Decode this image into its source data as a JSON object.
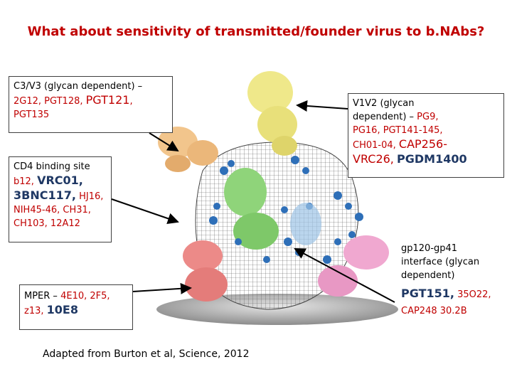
{
  "title": "What about sensitivity of transmitted/founder virus to b.NAbs?",
  "boxes": {
    "c3v3": {
      "line1": "C3/V3 (glycan dependent) –",
      "ab1": "2G12, PGT128,",
      "ab2": "PGT121",
      "comma": ",",
      "ab3": "PGT135"
    },
    "cd4": {
      "line1": "CD4 binding site",
      "ab1": "b12,",
      "ab2": "VRC01,",
      "ab3": "3BNC117,",
      "ab4": "HJ16,",
      "ab5": "NIH45-46, CH31,",
      "ab6": "CH103, 12A12"
    },
    "mper": {
      "line1": "MPER –",
      "ab1": "4E10, 2F5,",
      "ab2": "z13,",
      "ab3": "10E8"
    },
    "v1v2": {
      "line1": "V1V2 (glycan",
      "line2": "dependent) –",
      "ab1": "PG9,",
      "ab2": "PG16, PGT141-145,",
      "ab3": "CH01-04,",
      "ab4": "CAP256-",
      "ab5": "VRC26,",
      "ab6": "PGDM1400"
    },
    "interface": {
      "line1": "gp120-gp41",
      "line2": "interface (glycan",
      "line3": "dependent)",
      "ab1": "PGT151,",
      "ab2": "35O22,",
      "ab3": "CAP248 30.2B"
    }
  },
  "caption": "Adapted from Burton et al, Science, 2012"
}
